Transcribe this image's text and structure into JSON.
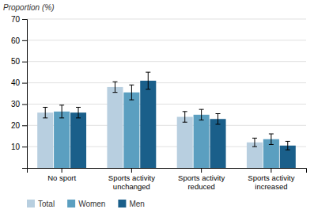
{
  "chart_data": {
    "type": "bar",
    "ylabel": "Proportion (%)",
    "categories": [
      "No sport",
      "Sports activity\nunchanged",
      "Sports activity\nreduced",
      "Sports activity\nincreased"
    ],
    "series": [
      {
        "name": "Total",
        "color": "#b8cfe0",
        "values": [
          26,
          38,
          24,
          12
        ],
        "errors": [
          2.5,
          2.5,
          2.5,
          2.0
        ]
      },
      {
        "name": "Women",
        "color": "#5b9fc0",
        "values": [
          26.5,
          35.5,
          25,
          13.5
        ],
        "errors": [
          3.0,
          3.5,
          2.5,
          2.5
        ]
      },
      {
        "name": "Men",
        "color": "#1a5f8a",
        "values": [
          26,
          41,
          23,
          10.5
        ],
        "errors": [
          2.5,
          4.0,
          2.5,
          2.0
        ]
      }
    ],
    "ylim": [
      0,
      70
    ],
    "yticks": [
      10,
      20,
      30,
      40,
      50,
      60,
      70
    ],
    "grid": true,
    "legend": "bottom"
  }
}
